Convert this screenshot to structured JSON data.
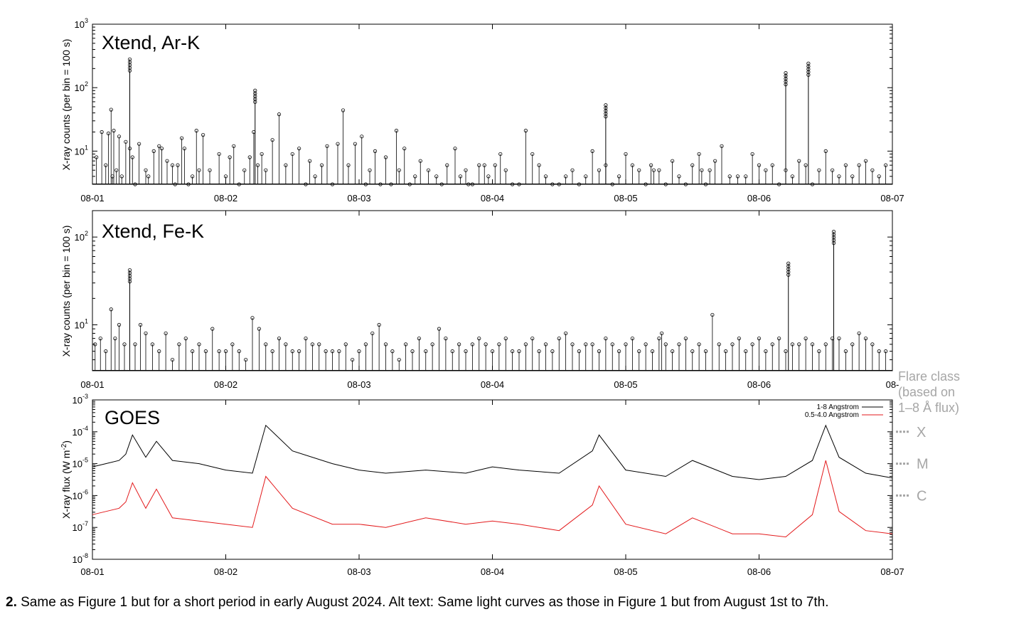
{
  "chart_data": [
    {
      "type": "line",
      "panel_label": "Xtend, Ar-K",
      "ylabel": "X-ray counts (per bin = 100 s)",
      "yscale": "log",
      "ylim": [
        3,
        1000
      ],
      "yticks": [
        {
          "base": "10",
          "exp": "1"
        },
        {
          "base": "10",
          "exp": "2"
        },
        {
          "base": "10",
          "exp": "3"
        }
      ],
      "xlim_days": [
        0,
        6
      ],
      "xticks": [
        "08-01",
        "08-02",
        "08-03",
        "08-04",
        "08-05",
        "08-06",
        "08-07"
      ],
      "marker": "open-circle",
      "series": [
        {
          "x_days": [
            0.03,
            0.07,
            0.1,
            0.12,
            0.14,
            0.15,
            0.16,
            0.18,
            0.2,
            0.22,
            0.25,
            0.28,
            0.3,
            0.32,
            0.35,
            0.4,
            0.42,
            0.46,
            0.5,
            0.52,
            0.56,
            0.6,
            0.62,
            0.64,
            0.67,
            0.69,
            0.72,
            0.75,
            0.78,
            0.8,
            0.83,
            0.88,
            0.95,
            1.0,
            1.03,
            1.06,
            1.1,
            1.14,
            1.18,
            1.21,
            1.24,
            1.27,
            1.3,
            1.35,
            1.4,
            1.45,
            1.5,
            1.55,
            1.6,
            1.63,
            1.67,
            1.72,
            1.76,
            1.8,
            1.84,
            1.88,
            1.92,
            1.97,
            2.02,
            2.05,
            2.08,
            2.12,
            2.16,
            2.2,
            2.24,
            2.28,
            2.3,
            2.34,
            2.38,
            2.42,
            2.46,
            2.52,
            2.58,
            2.62,
            2.66,
            2.72,
            2.76,
            2.8,
            2.82,
            2.85,
            2.9,
            2.94,
            2.97,
            3.02,
            3.06,
            3.1,
            3.15,
            3.2,
            3.25,
            3.3,
            3.35,
            3.4,
            3.45,
            3.5,
            3.55,
            3.6,
            3.65,
            3.7,
            3.75,
            3.8,
            3.85,
            3.9,
            3.95,
            4.0,
            4.05,
            4.1,
            4.15,
            4.19,
            4.21,
            4.25,
            4.3,
            4.35,
            4.4,
            4.45,
            4.5,
            4.55,
            4.57,
            4.6,
            4.63,
            4.67,
            4.72,
            4.78,
            4.84,
            4.9,
            4.95,
            5.0,
            5.05,
            5.1,
            5.15,
            5.2,
            5.25,
            5.3,
            5.35,
            5.4,
            5.45,
            5.5,
            5.55,
            5.6,
            5.65,
            5.7,
            5.75,
            5.8,
            5.85,
            5.9,
            5.95
          ],
          "y": [
            8,
            20,
            6,
            19,
            45,
            4,
            21,
            5,
            17,
            4,
            14,
            11,
            8,
            3,
            13,
            5,
            4,
            10,
            12,
            11,
            7,
            6,
            3,
            6,
            16,
            11,
            3,
            4,
            21,
            5,
            18,
            5,
            9,
            4,
            8,
            12,
            3,
            5,
            8,
            20,
            6,
            9,
            5,
            15,
            38,
            6,
            9,
            11,
            3,
            7,
            4,
            6,
            12,
            3,
            13,
            44,
            6,
            13,
            17,
            3,
            5,
            10,
            3,
            8,
            3,
            21,
            5,
            11,
            3,
            4,
            7,
            5,
            4,
            3,
            6,
            11,
            4,
            5,
            3,
            3,
            6,
            6,
            4,
            6,
            9,
            5,
            3,
            3,
            21,
            9,
            6,
            4,
            3,
            3,
            4,
            5,
            3,
            4,
            10,
            5,
            6,
            3,
            4,
            9,
            6,
            5,
            3,
            6,
            5,
            5,
            3,
            7,
            4,
            3,
            6,
            9,
            5,
            3,
            5,
            7,
            12,
            4,
            4,
            4,
            9,
            6,
            5,
            6,
            3,
            5,
            4,
            7,
            6,
            3,
            5,
            10,
            5,
            4,
            6,
            4,
            6,
            7,
            5,
            4,
            6
          ]
        }
      ],
      "peaks": [
        {
          "x_days": 0.28,
          "y": 280
        },
        {
          "x_days": 1.22,
          "y": 90
        },
        {
          "x_days": 3.85,
          "y": 53
        },
        {
          "x_days": 5.2,
          "y": 170
        },
        {
          "x_days": 5.37,
          "y": 240
        }
      ]
    },
    {
      "type": "line",
      "panel_label": "Xtend, Fe-K",
      "ylabel": "X-ray counts (per bin = 100 s)",
      "yscale": "log",
      "ylim": [
        3,
        200
      ],
      "yticks": [
        {
          "base": "10",
          "exp": "1"
        },
        {
          "base": "10",
          "exp": "2"
        }
      ],
      "xlim_days": [
        0,
        6
      ],
      "xticks": [
        "08-01",
        "08-02",
        "08-03",
        "08-04",
        "08-05",
        "08-06",
        "08-"
      ],
      "marker": "open-circle",
      "series": [
        {
          "x_days": [
            0.02,
            0.06,
            0.1,
            0.14,
            0.17,
            0.2,
            0.24,
            0.32,
            0.36,
            0.4,
            0.45,
            0.5,
            0.55,
            0.6,
            0.65,
            0.7,
            0.75,
            0.8,
            0.85,
            0.9,
            0.95,
            1.0,
            1.05,
            1.1,
            1.15,
            1.2,
            1.25,
            1.3,
            1.35,
            1.4,
            1.45,
            1.5,
            1.55,
            1.6,
            1.65,
            1.7,
            1.75,
            1.8,
            1.85,
            1.9,
            1.95,
            2.0,
            2.05,
            2.1,
            2.15,
            2.2,
            2.25,
            2.3,
            2.35,
            2.4,
            2.45,
            2.5,
            2.55,
            2.6,
            2.65,
            2.7,
            2.75,
            2.8,
            2.85,
            2.9,
            2.95,
            3.0,
            3.05,
            3.1,
            3.15,
            3.2,
            3.25,
            3.3,
            3.35,
            3.4,
            3.45,
            3.5,
            3.55,
            3.6,
            3.65,
            3.7,
            3.75,
            3.8,
            3.85,
            3.9,
            3.95,
            4.0,
            4.05,
            4.1,
            4.15,
            4.2,
            4.25,
            4.27,
            4.3,
            4.35,
            4.4,
            4.45,
            4.5,
            4.55,
            4.6,
            4.65,
            4.7,
            4.75,
            4.8,
            4.85,
            4.9,
            4.95,
            5.0,
            5.05,
            5.1,
            5.15,
            5.2,
            5.25,
            5.3,
            5.35,
            5.4,
            5.45,
            5.5,
            5.55,
            5.6,
            5.65,
            5.7,
            5.75,
            5.8,
            5.85,
            5.9,
            5.95
          ],
          "y": [
            6,
            7,
            5,
            15,
            7,
            10,
            6,
            6,
            10,
            8,
            6,
            5,
            8,
            4,
            6,
            7,
            5,
            6,
            5,
            9,
            5,
            5,
            6,
            5,
            4,
            12,
            9,
            6,
            5,
            7,
            6,
            5,
            5,
            7,
            6,
            6,
            5,
            5,
            5,
            6,
            4,
            5,
            6,
            8,
            10,
            6,
            5,
            4,
            6,
            5,
            7,
            5,
            6,
            9,
            7,
            5,
            6,
            5,
            6,
            7,
            6,
            5,
            6,
            7,
            5,
            5,
            6,
            7,
            5,
            6,
            5,
            7,
            8,
            6,
            5,
            6,
            6,
            5,
            7,
            6,
            5,
            6,
            7,
            5,
            6,
            5,
            7,
            8,
            6,
            5,
            6,
            7,
            5,
            6,
            5,
            13,
            6,
            5,
            6,
            7,
            5,
            6,
            7,
            5,
            6,
            7,
            5,
            6,
            6,
            7,
            6,
            5,
            6,
            7,
            7,
            5,
            6,
            8,
            7,
            6,
            5,
            5
          ]
        }
      ],
      "peaks": [
        {
          "x_days": 0.28,
          "y": 42
        },
        {
          "x_days": 5.22,
          "y": 50
        },
        {
          "x_days": 5.56,
          "y": 115
        }
      ]
    },
    {
      "type": "line",
      "panel_label": "GOES",
      "ylabel": "X-ray flux (W m",
      "ylabel_sup": "-2",
      "ylabel_end": ")",
      "yscale": "log",
      "ylim_exp": [
        -8,
        -3
      ],
      "yticks": [
        {
          "base": "10",
          "exp": "-8"
        },
        {
          "base": "10",
          "exp": "-7"
        },
        {
          "base": "10",
          "exp": "-6"
        },
        {
          "base": "10",
          "exp": "-5"
        },
        {
          "base": "10",
          "exp": "-4"
        },
        {
          "base": "10",
          "exp": "-3"
        }
      ],
      "xlim_days": [
        0,
        6
      ],
      "xticks": [
        "08-01",
        "08-02",
        "08-03",
        "08-04",
        "08-05",
        "08-06",
        "08-07"
      ],
      "legend_position": "top-right",
      "series": [
        {
          "name": "1-8 Angstrom",
          "color": "#000000",
          "x_days": [
            0.0,
            0.1,
            0.2,
            0.25,
            0.3,
            0.4,
            0.48,
            0.6,
            0.8,
            1.0,
            1.2,
            1.3,
            1.5,
            1.8,
            2.0,
            2.2,
            2.5,
            2.8,
            3.0,
            3.2,
            3.5,
            3.75,
            3.8,
            4.0,
            4.3,
            4.5,
            4.8,
            5.0,
            5.2,
            5.4,
            5.5,
            5.6,
            5.8,
            6.0
          ],
          "log10_flux": [
            -5.1,
            -5.0,
            -4.9,
            -4.7,
            -4.1,
            -4.8,
            -4.3,
            -4.9,
            -5.0,
            -5.2,
            -5.3,
            -3.8,
            -4.6,
            -5.0,
            -5.2,
            -5.3,
            -5.2,
            -5.3,
            -5.1,
            -5.2,
            -5.3,
            -4.6,
            -4.1,
            -5.2,
            -5.4,
            -4.9,
            -5.4,
            -5.5,
            -5.4,
            -4.9,
            -3.8,
            -4.8,
            -5.3,
            -5.45
          ]
        },
        {
          "name": "0.5-4.0 Angstrom",
          "color": "#e31a1c",
          "x_days": [
            0.0,
            0.1,
            0.2,
            0.25,
            0.3,
            0.4,
            0.48,
            0.6,
            0.8,
            1.0,
            1.2,
            1.3,
            1.5,
            1.8,
            2.0,
            2.2,
            2.5,
            2.8,
            3.0,
            3.2,
            3.5,
            3.75,
            3.8,
            4.0,
            4.3,
            4.5,
            4.8,
            5.0,
            5.2,
            5.4,
            5.5,
            5.6,
            5.8,
            6.0
          ],
          "log10_flux": [
            -6.6,
            -6.5,
            -6.4,
            -6.2,
            -5.6,
            -6.4,
            -5.8,
            -6.7,
            -6.8,
            -6.9,
            -7.0,
            -5.4,
            -6.4,
            -6.9,
            -6.9,
            -7.0,
            -6.7,
            -6.9,
            -6.8,
            -6.9,
            -7.1,
            -6.3,
            -5.7,
            -6.9,
            -7.2,
            -6.7,
            -7.2,
            -7.2,
            -7.3,
            -6.6,
            -4.9,
            -6.5,
            -7.1,
            -7.2
          ]
        }
      ],
      "class_axis": {
        "title_lines": [
          "Flare class",
          "(based on",
          "1–8 Å flux)"
        ],
        "labels": [
          {
            "name": "X",
            "log10_flux": -4
          },
          {
            "name": "M",
            "log10_flux": -5
          },
          {
            "name": "C",
            "log10_flux": -6
          }
        ]
      }
    }
  ],
  "caption": {
    "label": "2.",
    "text": " Same as Figure 1 but for a short period in early August 2024. Alt text: Same light curves as those in Figure 1 but from August 1st to 7th."
  }
}
